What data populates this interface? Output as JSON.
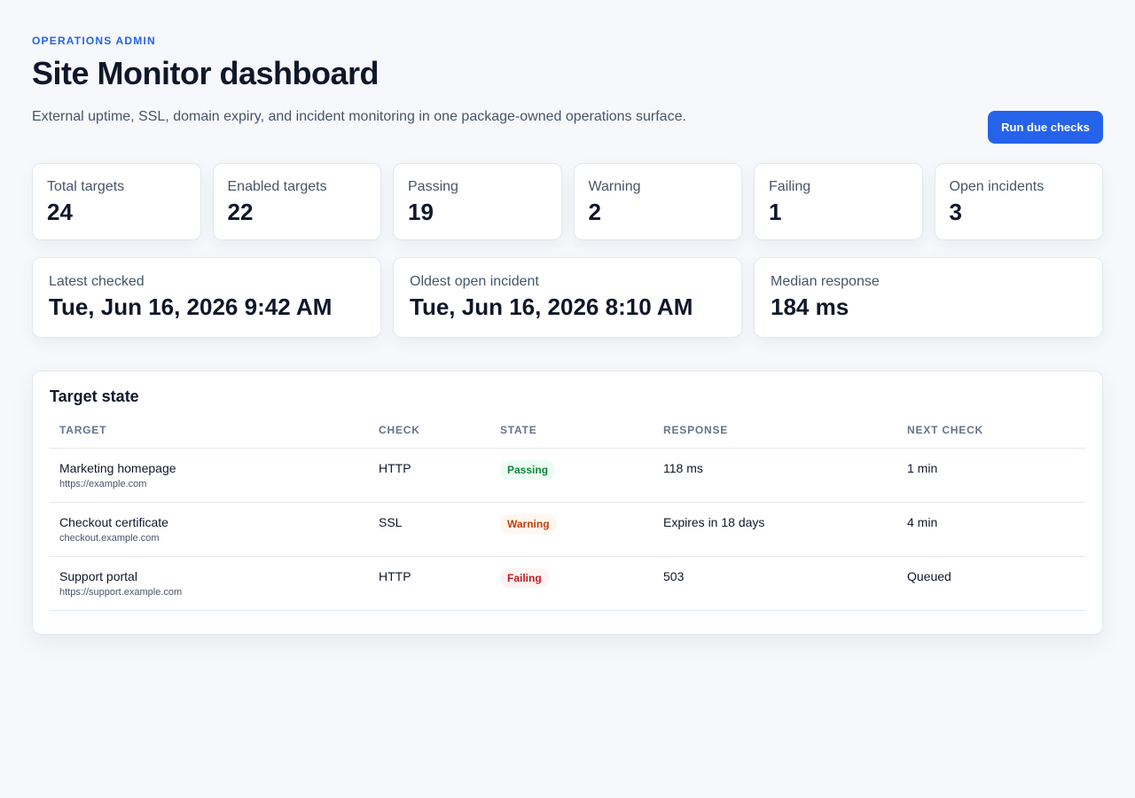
{
  "header": {
    "eyebrow": "OPERATIONS ADMIN",
    "title": "Site Monitor dashboard",
    "subtitle": "External uptime, SSL, domain expiry, and incident monitoring in one package-owned operations surface.",
    "run_button_label": "Run due checks"
  },
  "stats": [
    {
      "label": "Total targets",
      "value": "24"
    },
    {
      "label": "Enabled targets",
      "value": "22"
    },
    {
      "label": "Passing",
      "value": "19"
    },
    {
      "label": "Warning",
      "value": "2"
    },
    {
      "label": "Failing",
      "value": "1"
    },
    {
      "label": "Open incidents",
      "value": "3"
    }
  ],
  "summary": [
    {
      "label": "Latest checked",
      "value": "Tue, Jun 16, 2026 9:42 AM"
    },
    {
      "label": "Oldest open incident",
      "value": "Tue, Jun 16, 2026 8:10 AM"
    },
    {
      "label": "Median response",
      "value": "184 ms"
    }
  ],
  "table": {
    "title": "Target state",
    "columns": [
      "TARGET",
      "CHECK",
      "STATE",
      "RESPONSE",
      "NEXT CHECK"
    ],
    "rows": [
      {
        "name": "Marketing homepage",
        "url": "https://example.com",
        "check": "HTTP",
        "state": "Passing",
        "response": "118 ms",
        "next": "1 min"
      },
      {
        "name": "Checkout certificate",
        "url": "checkout.example.com",
        "check": "SSL",
        "state": "Warning",
        "response": "Expires in 18 days",
        "next": "4 min"
      },
      {
        "name": "Support portal",
        "url": "https://support.example.com",
        "check": "HTTP",
        "state": "Failing",
        "response": "503",
        "next": "Queued"
      }
    ]
  },
  "colors": {
    "accent": "#2563eb",
    "passing": "#15803d",
    "warning": "#c2410c",
    "failing": "#b91c1c"
  }
}
